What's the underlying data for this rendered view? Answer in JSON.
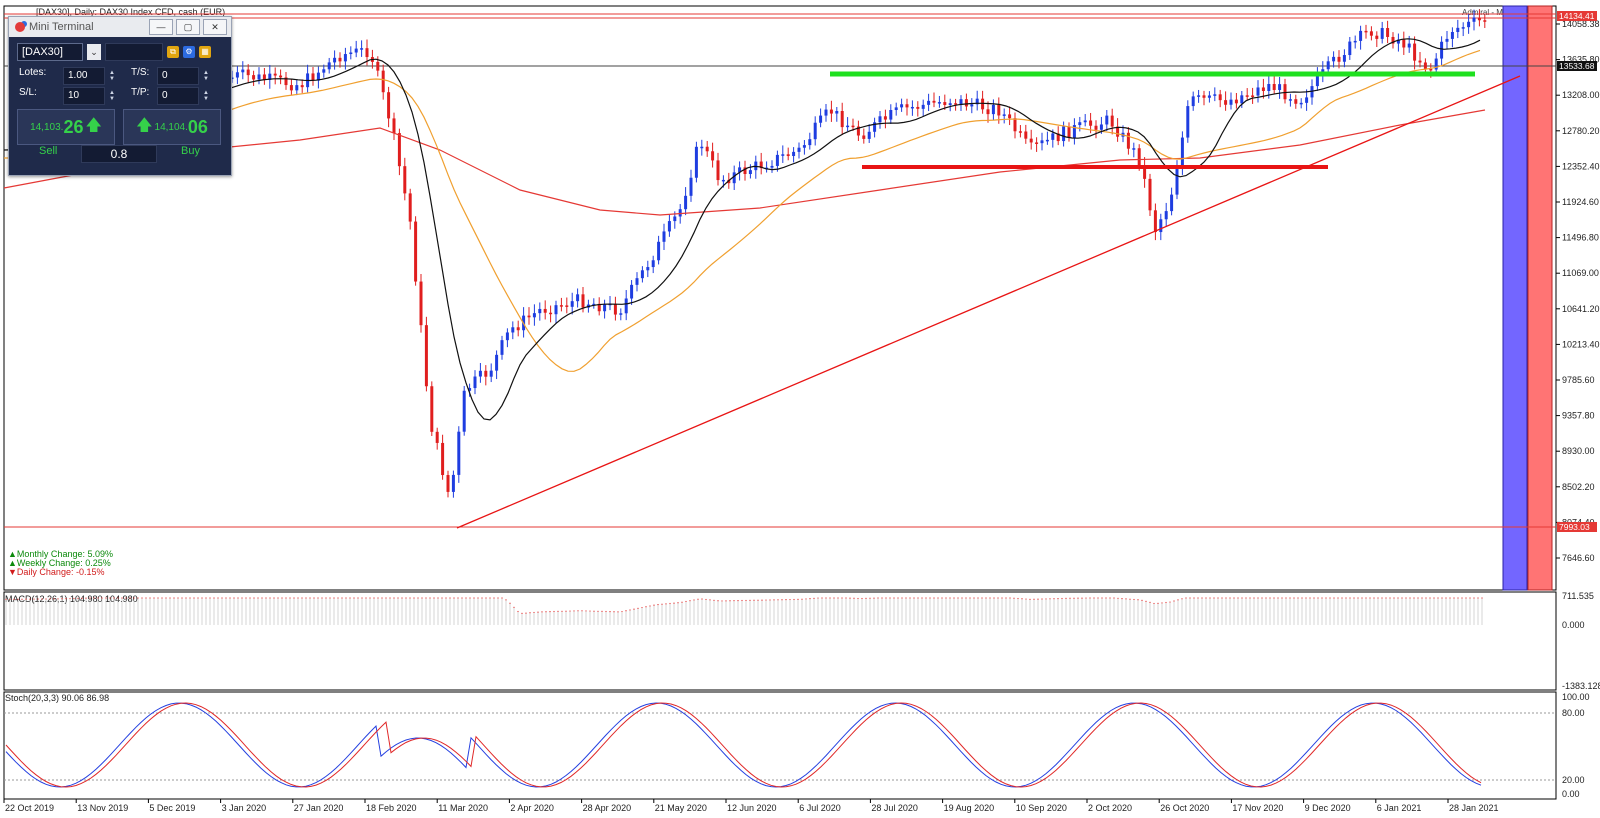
{
  "window": {
    "title": "[DAX30], Daily:  DAX30 Index CFD, cash (EUR)",
    "overlay_label": "Admiral - Mini Terminal"
  },
  "price_axis": {
    "labels": [
      "14058.38",
      "13635.80",
      "13208.00",
      "12780.20",
      "12352.40",
      "11924.60",
      "11496.80",
      "11069.00",
      "10641.20",
      "10213.40",
      "9785.60",
      "9357.80",
      "8930.00",
      "8502.20",
      "8074.40",
      "7646.60"
    ],
    "badges": [
      {
        "text": "14134.41",
        "color": "#e53935"
      },
      {
        "text": "13533.68",
        "color": "#111111"
      },
      {
        "text": "7993.03",
        "color": "#e53935"
      }
    ]
  },
  "macd": {
    "label": "MACD(12,26,1) 104.980 104.980",
    "axis": [
      "711.535",
      "0.000",
      "-1383.128"
    ]
  },
  "stoch": {
    "label": "Stoch(20,3,3) 90.06 86.98",
    "axis": [
      "100.00",
      "80.00",
      "20.00",
      "0.00"
    ]
  },
  "dates": [
    "22 Oct 2019",
    "13 Nov 2019",
    "5 Dec 2019",
    "3 Jan 2020",
    "27 Jan 2020",
    "18 Feb 2020",
    "11 Mar 2020",
    "2 Apr 2020",
    "28 Apr 2020",
    "21 May 2020",
    "12 Jun 2020",
    "6 Jul 2020",
    "28 Jul 2020",
    "19 Aug 2020",
    "10 Sep 2020",
    "2 Oct 2020",
    "26 Oct 2020",
    "17 Nov 2020",
    "9 Dec 2020",
    "6 Jan 2021",
    "28 Jan 2021"
  ],
  "changes": {
    "monthly": "Monthly Change: 5.09%",
    "weekly": "Weekly Change: 0.25%",
    "daily": "Daily Change: -0.15%"
  },
  "mini_terminal": {
    "title": "Mini Terminal",
    "symbol": "[DAX30]",
    "lots_label": "Lotes:",
    "lots_value": "1.00",
    "ts_label": "T/S:",
    "ts_value": "0",
    "sl_label": "S/L:",
    "sl_value": "10",
    "tp_label": "T/P:",
    "tp_value": "0",
    "sell_price_small": "14,103.",
    "sell_price_big": "26",
    "buy_price_small": "14,104.",
    "buy_price_big": "06",
    "sell_label": "Sell",
    "buy_label": "Buy",
    "lot_input": "0.8"
  },
  "colors": {
    "up": "#1e3de0",
    "down": "#e01e1e",
    "green_level": "#1fe01f",
    "red_level": "#e81414",
    "ema200": "#e53935",
    "ema50": "#f0a030",
    "ema20": "#111111"
  }
}
